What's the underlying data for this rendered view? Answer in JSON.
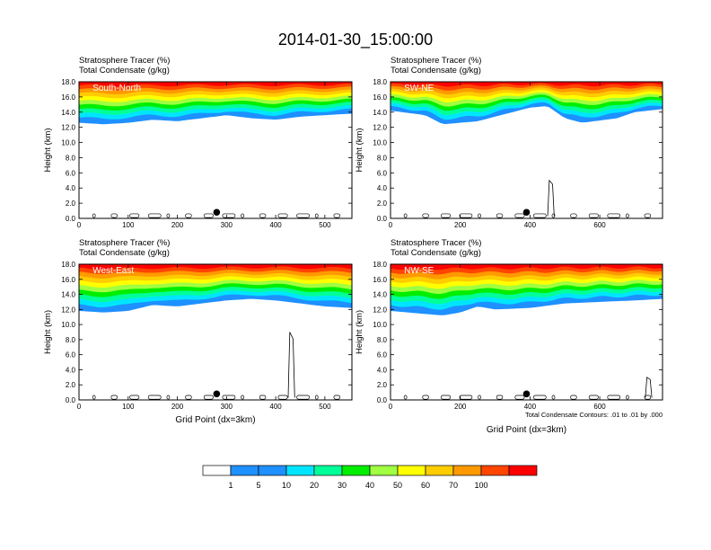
{
  "figure_title": "2014-01-30_15:00:00",
  "panel_header_line1": "Stratosphere Tracer   (%)",
  "panel_header_line2": "Total Condensate   (g/kg)",
  "contour_note": "Total Condensate Contours: .01 to .01 by .000",
  "colorbar": {
    "colors": [
      "#ffffff",
      "#1e90ff",
      "#1e90ff",
      "#00e5ff",
      "#00ff99",
      "#00ee00",
      "#a0ff40",
      "#ffff00",
      "#ffcc00",
      "#ff9900",
      "#ff4500",
      "#ff0000"
    ],
    "labels": [
      "1",
      "5",
      "10",
      "20",
      "30",
      "40",
      "50",
      "60",
      "70",
      "100"
    ]
  },
  "chart_data": [
    {
      "type": "heatmap",
      "panel_label": "South-North",
      "xlabel": "",
      "ylabel": "Height (km)",
      "xlim": [
        0,
        555
      ],
      "ylim": [
        0,
        18
      ],
      "xticks": [
        "0",
        "100",
        "200",
        "300",
        "400",
        "500"
      ],
      "yticks": [
        "0.0",
        "2.0",
        "4.0",
        "6.0",
        "8.0",
        "10.0",
        "12.0",
        "14.0",
        "16.0",
        "18.0"
      ],
      "marker_x": 280,
      "marker_y": 0.8,
      "tracer_base_km": [
        [
          0,
          12.6
        ],
        [
          50,
          12.4
        ],
        [
          100,
          12.6
        ],
        [
          150,
          13.0
        ],
        [
          200,
          12.8
        ],
        [
          250,
          13.2
        ],
        [
          300,
          13.6
        ],
        [
          350,
          13.2
        ],
        [
          400,
          13.0
        ],
        [
          450,
          13.4
        ],
        [
          500,
          13.6
        ],
        [
          555,
          13.8
        ]
      ],
      "condensate_spike": null
    },
    {
      "type": "heatmap",
      "panel_label": "SW-NE",
      "xlabel": "",
      "ylabel": "Height (km)",
      "xlim": [
        0,
        780
      ],
      "ylim": [
        0,
        18
      ],
      "xticks": [
        "0",
        "200",
        "400",
        "600"
      ],
      "yticks": [
        "0.0",
        "2.0",
        "4.0",
        "6.0",
        "8.0",
        "10.0",
        "12.0",
        "14.0",
        "16.0",
        "18.0"
      ],
      "marker_x": 390,
      "marker_y": 0.8,
      "tracer_base_km": [
        [
          0,
          14.2
        ],
        [
          100,
          13.6
        ],
        [
          150,
          12.4
        ],
        [
          250,
          12.8
        ],
        [
          300,
          13.4
        ],
        [
          400,
          14.6
        ],
        [
          450,
          14.8
        ],
        [
          500,
          13.2
        ],
        [
          550,
          12.6
        ],
        [
          650,
          13.2
        ],
        [
          700,
          14.0
        ],
        [
          780,
          14.4
        ]
      ],
      "condensate_spike": {
        "x": 460,
        "top_km": 5.0
      }
    },
    {
      "type": "heatmap",
      "panel_label": "West-East",
      "xlabel": "Grid Point (dx=3km)",
      "ylabel": "Height (km)",
      "xlim": [
        0,
        555
      ],
      "ylim": [
        0,
        18
      ],
      "xticks": [
        "0",
        "100",
        "200",
        "300",
        "400",
        "500"
      ],
      "yticks": [
        "0.0",
        "2.0",
        "4.0",
        "6.0",
        "8.0",
        "10.0",
        "12.0",
        "14.0",
        "16.0",
        "18.0"
      ],
      "marker_x": 280,
      "marker_y": 0.8,
      "tracer_base_km": [
        [
          0,
          11.8
        ],
        [
          50,
          11.6
        ],
        [
          100,
          11.8
        ],
        [
          150,
          12.6
        ],
        [
          200,
          12.4
        ],
        [
          250,
          12.8
        ],
        [
          300,
          13.2
        ],
        [
          350,
          13.4
        ],
        [
          400,
          13.2
        ],
        [
          450,
          12.8
        ],
        [
          500,
          12.4
        ],
        [
          555,
          12.2
        ]
      ],
      "condensate_spike": {
        "x": 432,
        "top_km": 9.0
      }
    },
    {
      "type": "heatmap",
      "panel_label": "NW-SE",
      "xlabel": "Grid Point (dx=3km)",
      "ylabel": "Height (km)",
      "xlim": [
        0,
        780
      ],
      "ylim": [
        0,
        18
      ],
      "xticks": [
        "0",
        "200",
        "400",
        "600"
      ],
      "yticks": [
        "0.0",
        "2.0",
        "4.0",
        "6.0",
        "8.0",
        "10.0",
        "12.0",
        "14.0",
        "16.0",
        "18.0"
      ],
      "marker_x": 390,
      "marker_y": 0.8,
      "tracer_base_km": [
        [
          0,
          11.8
        ],
        [
          100,
          11.4
        ],
        [
          150,
          11.2
        ],
        [
          200,
          11.6
        ],
        [
          250,
          12.4
        ],
        [
          300,
          12.0
        ],
        [
          400,
          12.2
        ],
        [
          500,
          12.8
        ],
        [
          600,
          13.0
        ],
        [
          700,
          13.2
        ],
        [
          780,
          13.4
        ]
      ],
      "condensate_spike": {
        "x": 740,
        "top_km": 3.0
      }
    }
  ]
}
